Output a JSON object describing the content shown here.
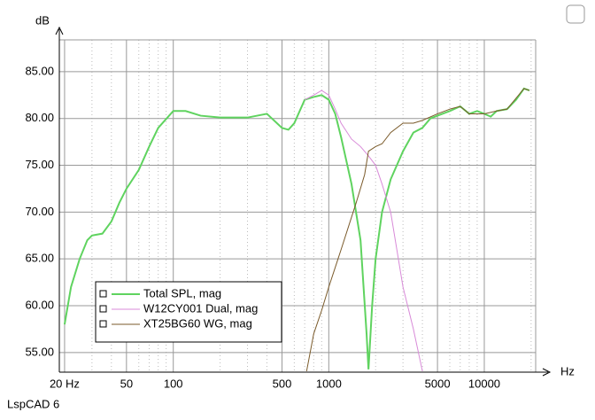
{
  "chart_data": {
    "type": "line",
    "x_label": "Hz",
    "y_label": "dB",
    "footer": "LspCAD 6",
    "xscale": "log",
    "xlim": [
      18.5,
      21400
    ],
    "ylim": [
      52.9,
      88.4
    ],
    "xticks": [
      {
        "value": 20,
        "label": "20 Hz"
      },
      50,
      100,
      500,
      1000,
      5000,
      10000
    ],
    "xminor": [
      30,
      40,
      60,
      70,
      80,
      90,
      200,
      300,
      400,
      600,
      700,
      800,
      900,
      2000,
      3000,
      4000,
      6000,
      7000,
      8000,
      9000,
      20000
    ],
    "yticks": [
      {
        "value": 55,
        "label": "55.00"
      },
      {
        "value": 60,
        "label": "60.00"
      },
      {
        "value": 65,
        "label": "65.00"
      },
      {
        "value": 70,
        "label": "70.00"
      },
      {
        "value": 75,
        "label": "75.00"
      },
      {
        "value": 80,
        "label": "80.00"
      },
      {
        "value": 85,
        "label": "85.00"
      }
    ],
    "grid": true,
    "series": [
      {
        "name": "Total SPL, mag",
        "color": "#5fd35f",
        "x": [
          20,
          22,
          25,
          28,
          30,
          35,
          40,
          45,
          50,
          60,
          70,
          80,
          100,
          120,
          150,
          200,
          300,
          400,
          500,
          550,
          600,
          700,
          800,
          900,
          1000,
          1100,
          1200,
          1400,
          1600,
          1750,
          1800,
          1900,
          2000,
          2200,
          2500,
          3000,
          3500,
          4000,
          4500,
          5000,
          6000,
          7000,
          8000,
          9000,
          10000,
          11000,
          12000,
          14000,
          16000,
          18000,
          19500
        ],
        "values": [
          58,
          62,
          65,
          67,
          67.5,
          67.7,
          69,
          71,
          72.5,
          74.5,
          77,
          79,
          80.8,
          80.8,
          80.3,
          80.1,
          80.1,
          80.5,
          79,
          78.8,
          79.5,
          82,
          82.3,
          82.5,
          82,
          80.5,
          78,
          73,
          67,
          57,
          53.2,
          60,
          65,
          70,
          73.5,
          76.5,
          78.5,
          79,
          80,
          80.3,
          80.8,
          81.3,
          80.5,
          80.8,
          80.5,
          80.2,
          80.8,
          81,
          82,
          83.2,
          83
        ]
      },
      {
        "name": "W12CY001 Dual, mag",
        "color": "#d88ad8",
        "x": [
          700,
          800,
          900,
          1000,
          1100,
          1200,
          1400,
          1600,
          1800,
          2000,
          2200,
          2500,
          3000,
          3500,
          4000
        ],
        "values": [
          82,
          82.5,
          83,
          82.5,
          81,
          79.5,
          77.8,
          77,
          76,
          75,
          73,
          70,
          62,
          57.5,
          53
        ]
      },
      {
        "name": "XT25BG60 WG, mag",
        "color": "#7a5a2a",
        "x": [
          720,
          800,
          900,
          1000,
          1200,
          1500,
          1700,
          1800,
          2000,
          2200,
          2500,
          3000,
          3500,
          4000,
          5000,
          6000,
          7000,
          8000,
          10000,
          12000,
          14000,
          18000,
          19500
        ],
        "values": [
          53,
          57,
          59.5,
          62,
          66,
          71,
          74,
          76.5,
          77,
          77.3,
          78.5,
          79.5,
          79.5,
          79.8,
          80.5,
          81,
          81.3,
          80.5,
          80.5,
          80.8,
          81,
          83.2,
          83
        ]
      }
    ]
  }
}
